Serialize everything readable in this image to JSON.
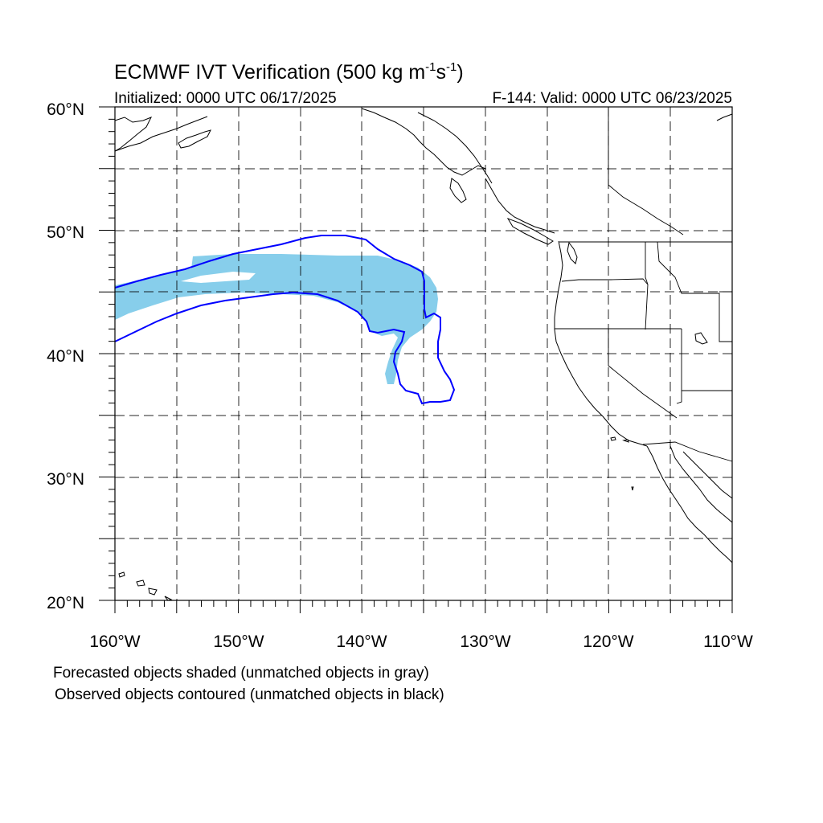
{
  "title": {
    "main": "ECMWF IVT Verification (500 kg m",
    "sup1": "-1",
    "mid": "s",
    "sup2": "-1",
    "close": ")"
  },
  "initialized": "Initialized: 0000 UTC 06/17/2025",
  "valid": "F-144: Valid: 0000 UTC 06/23/2025",
  "map": {
    "lon_range": [
      -160,
      -110
    ],
    "lat_range": [
      20,
      60
    ],
    "x_tick_labels": [
      "160°W",
      "150°W",
      "140°W",
      "130°W",
      "120°W",
      "110°W"
    ],
    "y_tick_labels": [
      "60°N",
      "50°N",
      "40°N",
      "30°N",
      "20°N"
    ],
    "colors": {
      "forecast_fill": "#87ceeb",
      "observed_contour": "#0000ff",
      "coast": "#000000"
    }
  },
  "captions": [
    "Forecasted objects shaded (unmatched objects in gray)",
    "Observed objects contoured (unmatched objects in black)"
  ]
}
